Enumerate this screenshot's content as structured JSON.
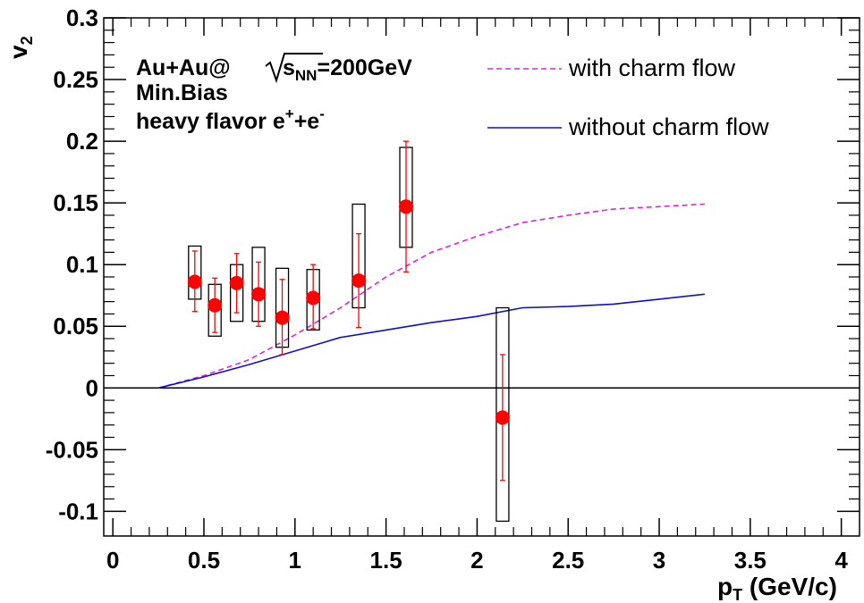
{
  "chart_data": {
    "type": "scatter",
    "title": "",
    "xlabel": {
      "main": "p",
      "sub": "T",
      "rest": " (GeV/c)"
    },
    "ylabel": {
      "main": "v",
      "sub": "2"
    },
    "xlim": [
      -0.05,
      4.1
    ],
    "ylim": [
      -0.12,
      0.3
    ],
    "x_ticks": [
      "0",
      "0.5",
      "1",
      "1.5",
      "2",
      "2.5",
      "3",
      "3.5",
      "4"
    ],
    "y_ticks": [
      "-0.1",
      "-0.05",
      "0",
      "0.05",
      "0.1",
      "0.15",
      "0.2",
      "0.25",
      "0.3"
    ],
    "grid": false,
    "annotations": {
      "system": {
        "part1": "Au+Au@",
        "sqrt_arg": "s",
        "sqrt_sub": "NN",
        "part2": "=200GeV"
      },
      "centrality": "Min.Bias",
      "particle": {
        "main": "heavy flavor e",
        "sup1": "+",
        "mid": "+e",
        "sup2": "-"
      }
    },
    "legend": {
      "position": "top-right",
      "entries": [
        {
          "label": "with charm flow",
          "style": "dashed",
          "color": "#e020e0"
        },
        {
          "label": "without charm flow",
          "style": "solid",
          "color": "#1010c0"
        }
      ]
    },
    "series": [
      {
        "kind": "points",
        "color": "#ff0000",
        "points": [
          {
            "x": 0.45,
            "y": 0.086,
            "err_lo": 0.024,
            "err_hi": 0.025,
            "sys_lo": 0.072,
            "sys_hi": 0.115
          },
          {
            "x": 0.56,
            "y": 0.067,
            "err_lo": 0.022,
            "err_hi": 0.022,
            "sys_lo": 0.042,
            "sys_hi": 0.084
          },
          {
            "x": 0.68,
            "y": 0.085,
            "err_lo": 0.024,
            "err_hi": 0.024,
            "sys_lo": 0.054,
            "sys_hi": 0.1
          },
          {
            "x": 0.8,
            "y": 0.076,
            "err_lo": 0.026,
            "err_hi": 0.026,
            "sys_lo": 0.054,
            "sys_hi": 0.114
          },
          {
            "x": 0.93,
            "y": 0.057,
            "err_lo": 0.03,
            "err_hi": 0.031,
            "sys_lo": 0.033,
            "sys_hi": 0.097
          },
          {
            "x": 1.1,
            "y": 0.073,
            "err_lo": 0.025,
            "err_hi": 0.027,
            "sys_lo": 0.047,
            "sys_hi": 0.096
          },
          {
            "x": 1.35,
            "y": 0.087,
            "err_lo": 0.038,
            "err_hi": 0.038,
            "sys_lo": 0.065,
            "sys_hi": 0.149
          },
          {
            "x": 1.61,
            "y": 0.147,
            "err_lo": 0.053,
            "err_hi": 0.053,
            "sys_lo": 0.114,
            "sys_hi": 0.195
          },
          {
            "x": 2.14,
            "y": -0.024,
            "err_lo": 0.051,
            "err_hi": 0.051,
            "sys_lo": -0.108,
            "sys_hi": 0.065
          }
        ]
      },
      {
        "name": "with charm flow",
        "kind": "line",
        "style": "dashed",
        "color": "#e020e0",
        "x": [
          0.25,
          0.5,
          0.75,
          1.0,
          1.25,
          1.5,
          1.75,
          2.0,
          2.25,
          2.5,
          2.75,
          3.0,
          3.25
        ],
        "y": [
          0.0,
          0.01,
          0.023,
          0.043,
          0.065,
          0.09,
          0.11,
          0.123,
          0.134,
          0.14,
          0.145,
          0.147,
          0.149
        ]
      },
      {
        "name": "without charm flow",
        "kind": "line",
        "style": "solid",
        "color": "#1010c0",
        "x": [
          0.25,
          0.5,
          0.75,
          1.0,
          1.25,
          1.5,
          1.75,
          2.0,
          2.25,
          2.5,
          2.75,
          3.0,
          3.25
        ],
        "y": [
          0.0,
          0.009,
          0.019,
          0.03,
          0.041,
          0.047,
          0.053,
          0.058,
          0.065,
          0.066,
          0.068,
          0.072,
          0.076
        ]
      }
    ]
  }
}
